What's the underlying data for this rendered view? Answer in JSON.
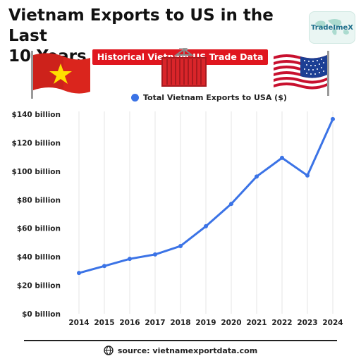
{
  "header": {
    "title_line1": "Vietnam Exports to US in the Last",
    "title_line2": "10 Years",
    "badge": "Historical Vietnam-US Trade Data"
  },
  "logo": {
    "text": "TradeImeX"
  },
  "icons": {
    "vietnam_flag": "vietnam-flag-icon",
    "container": "shipping-container-icon",
    "us_flag": "us-flag-icon",
    "globe": "globe-icon"
  },
  "colors": {
    "line": "#3b73e6",
    "badge": "#e0161f",
    "flag_red": "#da251d",
    "flag_star": "#ffde00",
    "container": "#d9252a"
  },
  "chart_data": {
    "type": "line",
    "title": "",
    "xlabel": "",
    "ylabel": "",
    "categories": [
      "2014",
      "2015",
      "2016",
      "2017",
      "2018",
      "2019",
      "2020",
      "2021",
      "2022",
      "2023",
      "2024"
    ],
    "series": [
      {
        "name": "Total Vietnam Exports to USA ($)",
        "values": [
          28.6,
          33.5,
          38.5,
          41.6,
          47.5,
          61.4,
          77.1,
          96.3,
          109.4,
          97.0,
          136.6
        ]
      }
    ],
    "y_ticks": [
      0,
      20,
      40,
      60,
      80,
      100,
      120,
      140
    ],
    "y_tick_labels": [
      "$0 billion",
      "$20 billion",
      "$40 billion",
      "$60 billion",
      "$80 billion",
      "$100 billion",
      "$120 billion",
      "$140 billion"
    ],
    "ylim": [
      0,
      140
    ],
    "grid": "vertical",
    "legend_position": "top-center",
    "legend_label": "Total Vietnam Exports to USA ($)"
  },
  "footer": {
    "source": "source: vietnamexportdata.com"
  }
}
